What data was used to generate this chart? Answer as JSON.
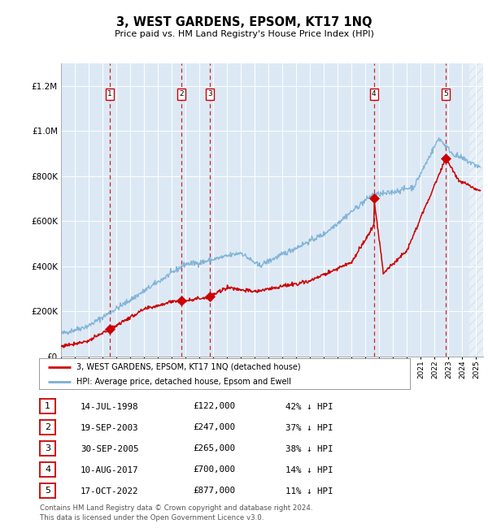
{
  "title": "3, WEST GARDENS, EPSOM, KT17 1NQ",
  "subtitle": "Price paid vs. HM Land Registry's House Price Index (HPI)",
  "footer": "Contains HM Land Registry data © Crown copyright and database right 2024.\nThis data is licensed under the Open Government Licence v3.0.",
  "legend_red": "3, WEST GARDENS, EPSOM, KT17 1NQ (detached house)",
  "legend_blue": "HPI: Average price, detached house, Epsom and Ewell",
  "sales": [
    {
      "num": 1,
      "date_dec": 1998.54,
      "price": 122000,
      "label": "14-JUL-1998",
      "pct": "42% ↓ HPI"
    },
    {
      "num": 2,
      "date_dec": 2003.72,
      "price": 247000,
      "label": "19-SEP-2003",
      "pct": "37% ↓ HPI"
    },
    {
      "num": 3,
      "date_dec": 2005.75,
      "price": 265000,
      "label": "30-SEP-2005",
      "pct": "38% ↓ HPI"
    },
    {
      "num": 4,
      "date_dec": 2017.61,
      "price": 700000,
      "label": "10-AUG-2017",
      "pct": "14% ↓ HPI"
    },
    {
      "num": 5,
      "date_dec": 2022.8,
      "price": 877000,
      "label": "17-OCT-2022",
      "pct": "11% ↓ HPI"
    }
  ],
  "ylim": [
    0,
    1300000
  ],
  "xlim_start": 1995.0,
  "xlim_end": 2025.5,
  "background_color": "#dce9f5",
  "red_color": "#cc0000",
  "blue_color": "#7aafd4",
  "grid_color": "#ffffff",
  "hatch_start": 2024.5
}
